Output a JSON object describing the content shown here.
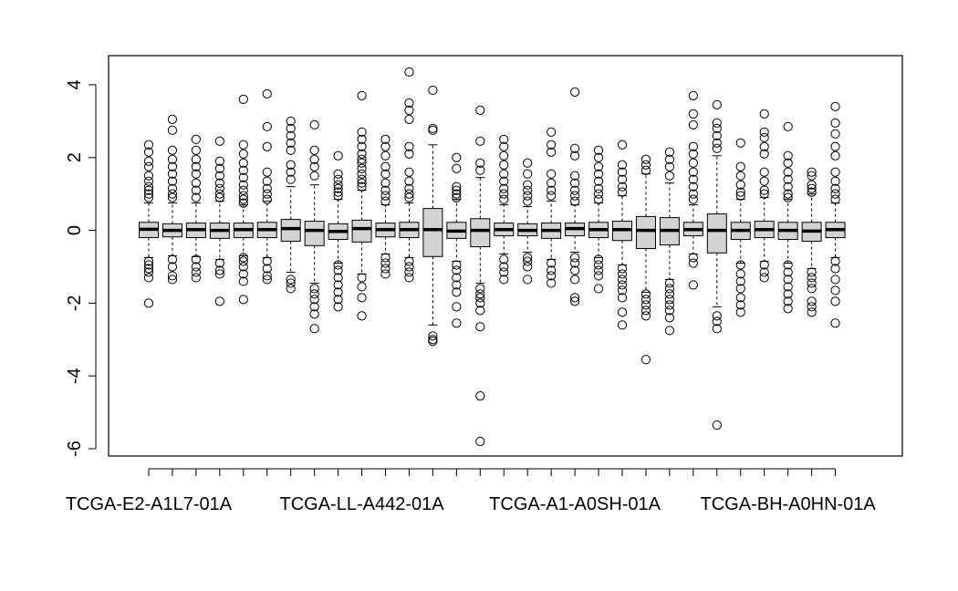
{
  "chart_data": {
    "type": "boxplot",
    "title": "",
    "xlabel": "",
    "ylabel": "",
    "ylim": [
      -6.2,
      4.8
    ],
    "yticks": [
      -6,
      -4,
      -2,
      0,
      2,
      4
    ],
    "ytick_labels": [
      "-6",
      "-4",
      "-2",
      "0",
      "2",
      "4"
    ],
    "grid": false,
    "box_fill": "#d3d3d3",
    "stroke_color": "#000000",
    "xtick_labels": [
      {
        "index": 0,
        "label": "TCGA-E2-A1L7-01A"
      },
      {
        "index": 9,
        "label": "TCGA-LL-A442-01A"
      },
      {
        "index": 18,
        "label": "TCGA-A1-A0SH-01A"
      },
      {
        "index": 27,
        "label": "TCGA-BH-A0HN-01A"
      }
    ],
    "boxes": [
      {
        "q1": -0.2,
        "median": 0.03,
        "q3": 0.22,
        "wlo": -0.75,
        "whi": 0.75,
        "outliers": [
          2.35,
          2.15,
          1.9,
          1.75,
          1.5,
          1.35,
          1.2,
          1.1,
          1.0,
          0.9,
          -0.85,
          -0.95,
          -1.05,
          -1.15,
          -1.3,
          -2.0
        ]
      },
      {
        "q1": -0.18,
        "median": 0.0,
        "q3": 0.18,
        "wlo": -0.7,
        "whi": 0.75,
        "outliers": [
          3.05,
          2.75,
          2.2,
          1.95,
          1.75,
          1.55,
          1.35,
          1.15,
          1.0,
          0.9,
          -0.8,
          -1.0,
          -1.25,
          -1.35
        ]
      },
      {
        "q1": -0.2,
        "median": 0.02,
        "q3": 0.2,
        "wlo": -0.72,
        "whi": 0.75,
        "outliers": [
          2.5,
          2.2,
          1.95,
          1.75,
          1.55,
          1.3,
          1.1,
          0.9,
          -0.8,
          -1.0,
          -1.15,
          -1.3
        ]
      },
      {
        "q1": -0.22,
        "median": 0.0,
        "q3": 0.2,
        "wlo": -0.8,
        "whi": 0.8,
        "outliers": [
          2.45,
          1.9,
          1.7,
          1.5,
          1.3,
          1.15,
          1.0,
          0.9,
          -0.9,
          -1.1,
          -1.2,
          -1.95
        ]
      },
      {
        "q1": -0.2,
        "median": 0.02,
        "q3": 0.2,
        "wlo": -0.7,
        "whi": 0.7,
        "outliers": [
          3.6,
          2.35,
          2.1,
          1.85,
          1.65,
          1.45,
          1.25,
          1.1,
          0.95,
          0.85,
          0.75,
          -0.75,
          -0.85,
          -1.0,
          -1.2,
          -1.4,
          -1.9
        ]
      },
      {
        "q1": -0.2,
        "median": 0.02,
        "q3": 0.22,
        "wlo": -0.75,
        "whi": 0.8,
        "outliers": [
          3.75,
          2.85,
          2.3,
          1.6,
          1.35,
          1.15,
          1.0,
          0.85,
          -0.85,
          -1.05,
          -1.25,
          -1.35
        ]
      },
      {
        "q1": -0.3,
        "median": 0.05,
        "q3": 0.3,
        "wlo": -1.15,
        "whi": 1.2,
        "outliers": [
          3.0,
          2.8,
          2.6,
          2.4,
          2.2,
          1.8,
          1.6,
          1.4,
          -1.35,
          -1.45,
          -1.6
        ]
      },
      {
        "q1": -0.42,
        "median": 0.0,
        "q3": 0.25,
        "wlo": -1.45,
        "whi": 1.25,
        "outliers": [
          2.9,
          2.2,
          1.95,
          1.75,
          1.5,
          -1.6,
          -1.75,
          -1.9,
          -2.1,
          -2.3,
          -2.7
        ]
      },
      {
        "q1": -0.25,
        "median": -0.03,
        "q3": 0.18,
        "wlo": -0.9,
        "whi": 0.85,
        "outliers": [
          2.05,
          1.55,
          1.4,
          1.25,
          1.15,
          1.05,
          0.95,
          -0.95,
          -1.1,
          -1.3,
          -1.5,
          -1.7,
          -1.9,
          -2.1
        ]
      },
      {
        "q1": -0.32,
        "median": 0.05,
        "q3": 0.28,
        "wlo": -1.2,
        "whi": 1.1,
        "outliers": [
          3.7,
          2.7,
          2.5,
          2.3,
          2.1,
          1.95,
          1.85,
          1.7,
          1.55,
          1.4,
          1.3,
          1.2,
          -1.3,
          -1.55,
          -1.85,
          -2.35
        ]
      },
      {
        "q1": -0.18,
        "median": 0.02,
        "q3": 0.2,
        "wlo": -0.65,
        "whi": 0.7,
        "outliers": [
          2.5,
          2.3,
          2.05,
          1.75,
          1.55,
          1.3,
          1.1,
          0.95,
          0.8,
          -0.75,
          -0.9,
          -1.05,
          -1.2
        ]
      },
      {
        "q1": -0.2,
        "median": 0.02,
        "q3": 0.22,
        "wlo": -0.75,
        "whi": 0.75,
        "outliers": [
          4.35,
          3.5,
          3.3,
          3.05,
          2.3,
          2.1,
          1.6,
          1.35,
          1.15,
          1.0,
          0.9,
          -0.85,
          -1.0,
          -1.15,
          -1.3
        ]
      },
      {
        "q1": -0.72,
        "median": 0.02,
        "q3": 0.6,
        "wlo": -2.6,
        "whi": 2.35,
        "outliers": [
          3.85,
          2.8,
          2.75,
          -2.9,
          -3.0,
          -3.05
        ]
      },
      {
        "q1": -0.22,
        "median": -0.02,
        "q3": 0.22,
        "wlo": -0.85,
        "whi": 0.85,
        "outliers": [
          2.0,
          1.7,
          1.2,
          1.1,
          1.0,
          0.9,
          -0.95,
          -1.1,
          -1.3,
          -1.5,
          -1.7,
          -2.1,
          -2.55
        ]
      },
      {
        "q1": -0.45,
        "median": 0.0,
        "q3": 0.32,
        "wlo": -1.45,
        "whi": 1.45,
        "outliers": [
          3.3,
          2.45,
          1.85,
          1.65,
          -1.6,
          -1.75,
          -1.85,
          -2.0,
          -2.2,
          -2.65,
          -4.55,
          -5.8
        ]
      },
      {
        "q1": -0.15,
        "median": 0.02,
        "q3": 0.2,
        "wlo": -0.65,
        "whi": 0.7,
        "outliers": [
          2.5,
          2.3,
          2.05,
          1.8,
          1.55,
          1.35,
          1.15,
          1.0,
          0.85,
          -0.8,
          -1.0,
          -1.15,
          -1.35
        ]
      },
      {
        "q1": -0.15,
        "median": 0.0,
        "q3": 0.18,
        "wlo": -0.6,
        "whi": 0.65,
        "outliers": [
          1.85,
          1.55,
          1.25,
          1.1,
          0.95,
          0.8,
          -0.75,
          -0.85,
          -1.0,
          -1.35
        ]
      },
      {
        "q1": -0.22,
        "median": 0.0,
        "q3": 0.2,
        "wlo": -0.8,
        "whi": 0.8,
        "outliers": [
          2.7,
          2.35,
          2.15,
          1.55,
          1.3,
          1.1,
          0.95,
          -0.9,
          -1.1,
          -1.25,
          -1.45
        ]
      },
      {
        "q1": -0.15,
        "median": 0.05,
        "q3": 0.2,
        "wlo": -0.6,
        "whi": 0.7,
        "outliers": [
          3.8,
          2.25,
          2.05,
          1.5,
          1.3,
          1.1,
          0.95,
          0.8,
          -0.75,
          -0.9,
          -1.1,
          -1.35,
          -1.85,
          -1.95
        ]
      },
      {
        "q1": -0.2,
        "median": 0.02,
        "q3": 0.22,
        "wlo": -0.75,
        "whi": 0.75,
        "outliers": [
          2.2,
          2.0,
          1.75,
          1.55,
          1.35,
          1.15,
          1.0,
          0.85,
          -0.8,
          -0.95,
          -1.1,
          -1.25,
          -1.6
        ]
      },
      {
        "q1": -0.28,
        "median": 0.02,
        "q3": 0.25,
        "wlo": -0.95,
        "whi": 0.95,
        "outliers": [
          2.35,
          1.8,
          1.6,
          1.4,
          1.2,
          1.05,
          -1.05,
          -1.2,
          -1.35,
          -1.5,
          -1.65,
          -1.85,
          -2.25,
          -2.6
        ]
      },
      {
        "q1": -0.5,
        "median": 0.0,
        "q3": 0.38,
        "wlo": -1.7,
        "whi": 1.55,
        "outliers": [
          1.95,
          1.8,
          1.65,
          -1.75,
          -1.9,
          -2.05,
          -2.2,
          -2.35,
          -3.55
        ]
      },
      {
        "q1": -0.4,
        "median": 0.0,
        "q3": 0.35,
        "wlo": -1.35,
        "whi": 1.3,
        "outliers": [
          2.15,
          1.95,
          1.75,
          1.5,
          -1.45,
          -1.6,
          -1.75,
          -1.9,
          -2.05,
          -2.2,
          -2.4,
          -2.75
        ]
      },
      {
        "q1": -0.15,
        "median": 0.02,
        "q3": 0.22,
        "wlo": -0.65,
        "whi": 0.7,
        "outliers": [
          3.7,
          3.2,
          2.9,
          2.3,
          2.1,
          1.85,
          1.6,
          1.4,
          1.2,
          1.0,
          0.85,
          -0.75,
          -0.9,
          -1.5
        ]
      },
      {
        "q1": -0.62,
        "median": 0.0,
        "q3": 0.45,
        "wlo": -2.1,
        "whi": 2.05,
        "outliers": [
          3.45,
          2.95,
          2.8,
          2.6,
          2.4,
          2.25,
          -2.35,
          -2.5,
          -2.7,
          -5.35
        ]
      },
      {
        "q1": -0.25,
        "median": 0.0,
        "q3": 0.22,
        "wlo": -0.9,
        "whi": 0.85,
        "outliers": [
          2.4,
          1.75,
          1.5,
          1.25,
          1.05,
          0.95,
          -0.95,
          -1.2,
          -1.4,
          -1.6,
          -1.85,
          -2.05,
          -2.25
        ]
      },
      {
        "q1": -0.2,
        "median": 0.02,
        "q3": 0.25,
        "wlo": -0.85,
        "whi": 0.9,
        "outliers": [
          3.2,
          2.7,
          2.55,
          2.3,
          2.1,
          1.6,
          1.35,
          1.1,
          1.0,
          -0.95,
          -1.15,
          -1.3
        ]
      },
      {
        "q1": -0.25,
        "median": 0.0,
        "q3": 0.22,
        "wlo": -0.9,
        "whi": 0.85,
        "outliers": [
          2.85,
          2.05,
          1.85,
          1.6,
          1.4,
          1.2,
          1.0,
          0.9,
          -0.95,
          -1.15,
          -1.35,
          -1.55,
          -1.75,
          -1.95,
          -2.15
        ]
      },
      {
        "q1": -0.3,
        "median": -0.02,
        "q3": 0.22,
        "wlo": -1.05,
        "whi": 1.0,
        "outliers": [
          1.6,
          1.5,
          1.25,
          1.15,
          1.05,
          -1.15,
          -1.3,
          -1.45,
          -1.6,
          -1.95,
          -2.1,
          -2.25
        ]
      },
      {
        "q1": -0.2,
        "median": 0.02,
        "q3": 0.22,
        "wlo": -0.75,
        "whi": 0.75,
        "outliers": [
          3.4,
          2.95,
          2.65,
          2.3,
          2.05,
          1.6,
          1.35,
          1.15,
          1.0,
          0.85,
          -0.85,
          -1.05,
          -1.35,
          -1.65,
          -1.95,
          -2.55
        ]
      }
    ]
  }
}
